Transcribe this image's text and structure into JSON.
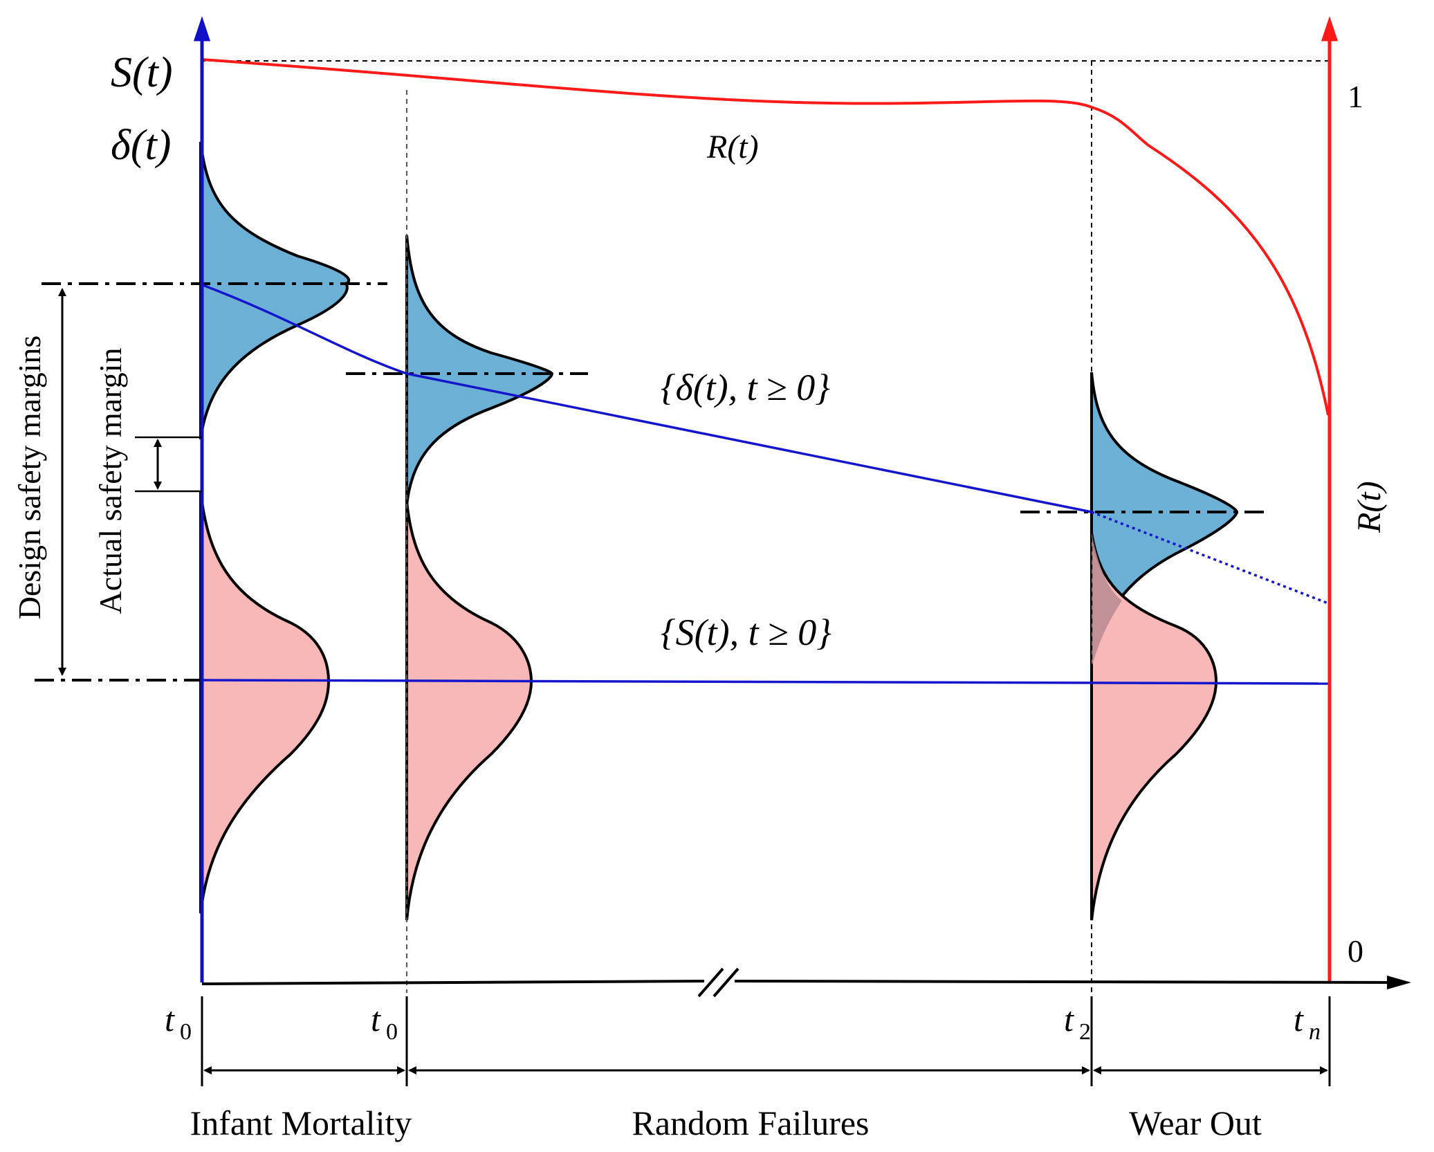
{
  "colors": {
    "delta_axis": "#1010c8",
    "reliability": "#ff1a1a",
    "delta_fill": "#6cb0d6",
    "strength_fill": "#f9b8b8",
    "overlap_fill": "#b98a92",
    "trend_line": "#1515cc",
    "ink": "#000000"
  },
  "axes": {
    "left_label_s": "S(t)",
    "left_label_delta": "δ(t)",
    "right_label": "R(t)",
    "right_tick_top": "1",
    "right_tick_bottom": "0",
    "x_ticks": [
      {
        "base": "t",
        "sub": "0"
      },
      {
        "base": "t",
        "sub": "0"
      },
      {
        "base": "t",
        "sub": "2"
      },
      {
        "base": "t",
        "sub": "n"
      }
    ]
  },
  "labels": {
    "reliability_curve": "R(t)",
    "delta_process": "{δ(t), t ≥ 0}",
    "strength_process": "{S(t), t ≥ 0}",
    "design_margin": "Design safety margins",
    "actual_margin": "Actual safety margin"
  },
  "phases": [
    {
      "name": "Infant Mortality"
    },
    {
      "name": "Random Failures"
    },
    {
      "name": "Wear Out"
    }
  ],
  "icons": {
    "axis_break": "double-slash-break-icon",
    "arrow": "arrowhead-icon"
  }
}
